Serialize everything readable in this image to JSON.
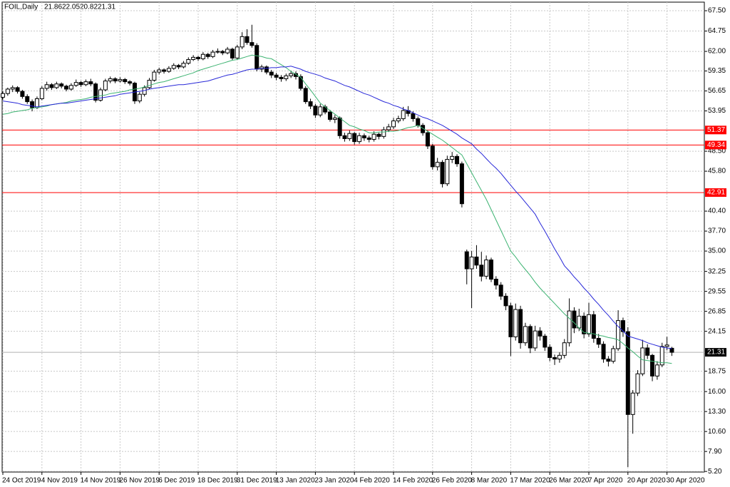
{
  "chart_data": {
    "type": "candlestick",
    "title": "FOIL,Daily",
    "categories": [
      "24 Oct 2019",
      null,
      null,
      null,
      null,
      null,
      null,
      null,
      "4 Nov 2019",
      null,
      null,
      null,
      null,
      null,
      null,
      null,
      "14 Nov 2019",
      null,
      null,
      null,
      null,
      null,
      null,
      null,
      "26 Nov 2019",
      null,
      null,
      null,
      null,
      null,
      null,
      null,
      "6 Dec 2019",
      null,
      null,
      null,
      null,
      null,
      null,
      null,
      "18 Dec 2019",
      null,
      null,
      null,
      null,
      null,
      null,
      null,
      "31 Dec 2019",
      null,
      null,
      null,
      null,
      null,
      null,
      null,
      "13 Jan 2020",
      null,
      null,
      null,
      null,
      null,
      null,
      null,
      "23 Jan 2020",
      null,
      null,
      null,
      null,
      null,
      null,
      null,
      "4 Feb 2020",
      null,
      null,
      null,
      null,
      null,
      null,
      null,
      "14 Feb 2020",
      null,
      null,
      null,
      null,
      null,
      null,
      null,
      "26 Feb 2020",
      null,
      null,
      null,
      null,
      null,
      null,
      null,
      "8 Mar 2020",
      null,
      null,
      null,
      null,
      null,
      null,
      null,
      "17 Mar 2020",
      null,
      null,
      null,
      null,
      null,
      null,
      null,
      "26 Mar 2020",
      null,
      null,
      null,
      null,
      null,
      null,
      null,
      "7 Apr 2020",
      null,
      null,
      null,
      null,
      null,
      null,
      null,
      "20 Apr 2020",
      null,
      null,
      null,
      null,
      null,
      null,
      null,
      "30 Apr 2020",
      null
    ],
    "candles": [
      [
        55.8,
        56.6,
        55.5,
        56.3
      ],
      [
        56.3,
        57.1,
        56.0,
        56.9
      ],
      [
        56.9,
        57.4,
        56.5,
        57.1
      ],
      [
        57.1,
        57.3,
        56.3,
        56.6
      ],
      [
        56.6,
        56.8,
        55.6,
        55.9
      ],
      [
        55.9,
        56.2,
        54.9,
        55.2
      ],
      [
        55.2,
        55.5,
        53.9,
        54.4
      ],
      [
        54.4,
        55.9,
        54.2,
        55.6
      ],
      [
        55.6,
        57.3,
        55.4,
        57.0
      ],
      [
        57.0,
        57.9,
        56.7,
        57.5
      ],
      [
        57.5,
        57.7,
        56.8,
        57.1
      ],
      [
        57.1,
        57.9,
        56.9,
        57.6
      ],
      [
        57.6,
        57.8,
        57.0,
        57.3
      ],
      [
        57.3,
        57.5,
        56.6,
        56.9
      ],
      [
        56.9,
        57.7,
        56.7,
        57.4
      ],
      [
        57.4,
        58.2,
        57.2,
        57.8
      ],
      [
        57.8,
        58.0,
        57.2,
        57.5
      ],
      [
        57.5,
        58.2,
        57.3,
        57.9
      ],
      [
        57.9,
        58.3,
        57.3,
        57.6
      ],
      [
        57.6,
        57.8,
        55.1,
        55.4
      ],
      [
        55.4,
        57.1,
        55.2,
        56.8
      ],
      [
        56.8,
        58.3,
        56.6,
        58.0
      ],
      [
        58.0,
        58.6,
        57.7,
        58.3
      ],
      [
        58.3,
        58.5,
        57.7,
        58.0
      ],
      [
        58.0,
        58.5,
        57.8,
        58.2
      ],
      [
        58.2,
        58.4,
        57.6,
        57.9
      ],
      [
        57.9,
        58.1,
        57.4,
        57.7
      ],
      [
        57.7,
        57.9,
        54.9,
        55.3
      ],
      [
        55.3,
        56.5,
        55.0,
        56.2
      ],
      [
        56.2,
        57.4,
        55.9,
        57.1
      ],
      [
        57.1,
        58.4,
        56.9,
        58.1
      ],
      [
        58.1,
        59.5,
        57.9,
        59.2
      ],
      [
        59.2,
        59.8,
        58.9,
        59.5
      ],
      [
        59.5,
        59.7,
        59.0,
        59.3
      ],
      [
        59.3,
        60.0,
        59.1,
        59.7
      ],
      [
        59.7,
        60.4,
        59.5,
        60.1
      ],
      [
        60.1,
        60.3,
        59.6,
        59.9
      ],
      [
        59.9,
        60.7,
        59.7,
        60.4
      ],
      [
        60.4,
        61.2,
        60.2,
        60.9
      ],
      [
        60.9,
        61.5,
        60.7,
        61.2
      ],
      [
        61.2,
        61.4,
        60.7,
        61.0
      ],
      [
        61.0,
        61.9,
        60.8,
        61.6
      ],
      [
        61.6,
        61.8,
        61.0,
        61.3
      ],
      [
        61.3,
        62.2,
        61.1,
        61.9
      ],
      [
        61.9,
        62.4,
        61.7,
        62.0
      ],
      [
        62.0,
        62.2,
        61.5,
        61.8
      ],
      [
        61.8,
        62.6,
        61.6,
        62.3
      ],
      [
        62.3,
        62.5,
        60.8,
        61.1
      ],
      [
        61.1,
        62.9,
        60.9,
        62.6
      ],
      [
        62.6,
        64.6,
        62.3,
        64.0
      ],
      [
        64.0,
        65.0,
        62.9,
        63.2
      ],
      [
        63.2,
        65.6,
        62.5,
        62.8
      ],
      [
        62.8,
        63.1,
        59.3,
        59.6
      ],
      [
        59.6,
        60.2,
        59.2,
        59.9
      ],
      [
        59.9,
        60.1,
        58.9,
        59.2
      ],
      [
        59.2,
        59.5,
        58.4,
        58.8
      ],
      [
        58.8,
        59.1,
        58.1,
        58.5
      ],
      [
        58.5,
        58.8,
        57.9,
        58.3
      ],
      [
        58.3,
        59.0,
        58.0,
        58.7
      ],
      [
        58.7,
        59.4,
        58.4,
        59.0
      ],
      [
        59.0,
        59.3,
        58.2,
        58.6
      ],
      [
        58.6,
        58.9,
        56.7,
        57.0
      ],
      [
        57.0,
        57.3,
        54.9,
        55.2
      ],
      [
        55.2,
        55.6,
        54.2,
        54.6
      ],
      [
        54.6,
        54.9,
        53.0,
        53.4
      ],
      [
        53.4,
        54.9,
        53.1,
        54.5
      ],
      [
        54.5,
        54.8,
        53.5,
        53.8
      ],
      [
        53.8,
        54.1,
        52.5,
        52.8
      ],
      [
        52.8,
        53.4,
        52.3,
        53.0
      ],
      [
        53.0,
        53.2,
        50.2,
        50.6
      ],
      [
        50.6,
        51.0,
        49.8,
        50.2
      ],
      [
        50.2,
        51.3,
        49.9,
        50.9
      ],
      [
        50.9,
        51.1,
        49.4,
        49.8
      ],
      [
        49.8,
        51.0,
        49.5,
        50.6
      ],
      [
        50.6,
        50.9,
        49.9,
        50.3
      ],
      [
        50.3,
        50.6,
        49.7,
        50.1
      ],
      [
        50.1,
        51.2,
        49.8,
        50.8
      ],
      [
        50.8,
        51.0,
        50.1,
        50.5
      ],
      [
        50.5,
        51.8,
        50.2,
        51.4
      ],
      [
        51.4,
        52.2,
        51.1,
        51.8
      ],
      [
        51.8,
        53.0,
        51.5,
        52.6
      ],
      [
        52.6,
        53.3,
        52.3,
        52.9
      ],
      [
        52.9,
        54.5,
        52.6,
        54.0
      ],
      [
        54.0,
        54.6,
        53.2,
        53.6
      ],
      [
        53.6,
        53.9,
        52.5,
        52.9
      ],
      [
        52.9,
        53.2,
        51.7,
        52.0
      ],
      [
        52.0,
        52.3,
        50.6,
        51.0
      ],
      [
        51.0,
        51.3,
        48.8,
        49.2
      ],
      [
        49.2,
        49.5,
        46.0,
        46.4
      ],
      [
        46.4,
        47.6,
        45.9,
        47.0
      ],
      [
        47.0,
        47.3,
        43.6,
        44.1
      ],
      [
        44.1,
        47.9,
        43.8,
        47.4
      ],
      [
        47.4,
        48.4,
        46.9,
        47.8
      ],
      [
        47.8,
        48.1,
        46.4,
        46.8
      ],
      [
        46.8,
        47.1,
        40.9,
        41.4
      ],
      [
        34.9,
        35.2,
        30.5,
        32.6
      ],
      [
        32.6,
        35.0,
        27.3,
        34.2
      ],
      [
        34.2,
        35.8,
        32.6,
        33.1
      ],
      [
        33.1,
        34.9,
        30.9,
        31.6
      ],
      [
        31.6,
        34.4,
        31.2,
        33.8
      ],
      [
        33.8,
        34.1,
        30.8,
        31.2
      ],
      [
        31.2,
        31.6,
        29.8,
        30.4
      ],
      [
        30.4,
        30.8,
        28.4,
        28.9
      ],
      [
        28.9,
        29.3,
        27.0,
        27.6
      ],
      [
        27.6,
        28.0,
        20.8,
        23.4
      ],
      [
        23.4,
        27.9,
        22.9,
        27.1
      ],
      [
        27.1,
        27.6,
        21.8,
        22.6
      ],
      [
        22.6,
        25.3,
        22.2,
        24.8
      ],
      [
        24.8,
        25.1,
        21.2,
        21.9
      ],
      [
        21.9,
        24.9,
        21.5,
        24.2
      ],
      [
        24.2,
        24.7,
        22.9,
        23.5
      ],
      [
        23.5,
        23.8,
        21.5,
        22.0
      ],
      [
        22.0,
        22.4,
        20.1,
        20.6
      ],
      [
        20.6,
        21.0,
        19.6,
        20.4
      ],
      [
        20.4,
        21.3,
        19.9,
        20.9
      ],
      [
        20.9,
        23.1,
        20.5,
        22.6
      ],
      [
        22.6,
        28.6,
        22.1,
        26.9
      ],
      [
        26.9,
        27.4,
        23.9,
        24.6
      ],
      [
        24.6,
        27.2,
        24.2,
        26.2
      ],
      [
        26.2,
        26.7,
        23.2,
        23.8
      ],
      [
        23.8,
        28.0,
        23.4,
        26.4
      ],
      [
        26.4,
        26.9,
        22.6,
        23.2
      ],
      [
        23.2,
        23.8,
        21.9,
        22.4
      ],
      [
        22.4,
        22.8,
        19.9,
        20.4
      ],
      [
        20.4,
        20.8,
        19.4,
        20.1
      ],
      [
        20.1,
        22.2,
        19.8,
        21.8
      ],
      [
        21.8,
        27.0,
        21.5,
        25.6
      ],
      [
        25.6,
        26.0,
        23.4,
        24.1
      ],
      [
        24.1,
        24.7,
        5.8,
        12.9
      ],
      [
        12.9,
        16.2,
        10.3,
        15.8
      ],
      [
        15.8,
        18.9,
        15.4,
        18.4
      ],
      [
        18.4,
        23.0,
        18.1,
        21.9
      ],
      [
        21.9,
        22.4,
        20.4,
        20.9
      ],
      [
        20.9,
        21.1,
        17.4,
        18.1
      ],
      [
        18.1,
        20.1,
        17.6,
        19.6
      ],
      [
        19.6,
        22.6,
        19.3,
        22.1
      ],
      [
        22.1,
        23.4,
        21.6,
        22.3
      ],
      [
        21.86,
        22.05,
        20.82,
        21.31
      ]
    ],
    "lines": [
      {
        "color": "#3cb371",
        "values": [
          53.5,
          53.6,
          53.8,
          53.9,
          54.0,
          54.1,
          54.3,
          54.4,
          54.5,
          54.6,
          54.8,
          54.9,
          55.0,
          55.1,
          55.3,
          55.4,
          55.5,
          55.6,
          55.8,
          55.9,
          56.0,
          56.1,
          56.3,
          56.4,
          56.5,
          56.6,
          56.8,
          56.9,
          57.0,
          57.2,
          57.4,
          57.6,
          57.8,
          57.9,
          58.1,
          58.3,
          58.5,
          58.7,
          58.9,
          59.1,
          59.4,
          59.6,
          59.8,
          60.0,
          60.2,
          60.4,
          60.6,
          60.8,
          60.9,
          61.1,
          61.3,
          61.5,
          61.4,
          61.3,
          61.1,
          61.0,
          60.6,
          60.2,
          59.8,
          59.3,
          58.9,
          58.5,
          57.6,
          56.8,
          55.9,
          55.0,
          54.5,
          54.0,
          53.5,
          53.0,
          52.5,
          52.0,
          51.8,
          51.5,
          51.3,
          51.0,
          51.0,
          51.1,
          51.1,
          51.2,
          51.2,
          51.3,
          51.5,
          51.7,
          51.8,
          52.0,
          51.6,
          51.2,
          50.8,
          50.4,
          50.0,
          49.5,
          49.0,
          48.5,
          48.0,
          46.8,
          45.6,
          44.4,
          43.2,
          42.0,
          40.6,
          39.2,
          37.8,
          36.4,
          35.0,
          34.2,
          33.3,
          32.5,
          31.7,
          30.8,
          30.0,
          29.3,
          28.6,
          27.9,
          27.2,
          26.5,
          25.9,
          25.3,
          24.6,
          24.0,
          23.9,
          23.8,
          23.6,
          23.5,
          23.3,
          23.2,
          23.0,
          22.5,
          21.9,
          21.4,
          20.8,
          20.3,
          20.2,
          20.1,
          20.0,
          19.9,
          19.9,
          19.8
        ]
      },
      {
        "color": "#2828d8",
        "values": [
          55.3,
          55.2,
          55.1,
          55.0,
          54.8,
          54.7,
          54.6,
          54.5,
          54.6,
          54.7,
          54.8,
          54.9,
          55.0,
          55.0,
          55.1,
          55.2,
          55.3,
          55.4,
          55.5,
          55.6,
          55.7,
          55.8,
          55.9,
          56.0,
          56.2,
          56.3,
          56.4,
          56.5,
          56.6,
          56.7,
          56.9,
          57.0,
          57.1,
          57.2,
          57.3,
          57.4,
          57.5,
          57.5,
          57.6,
          57.7,
          57.8,
          57.9,
          58.0,
          58.2,
          58.4,
          58.6,
          58.8,
          58.9,
          59.1,
          59.3,
          59.5,
          59.6,
          59.6,
          59.7,
          59.7,
          59.8,
          59.8,
          59.9,
          59.9,
          60.0,
          59.8,
          59.6,
          59.3,
          59.1,
          58.9,
          58.7,
          58.4,
          58.2,
          58.0,
          57.7,
          57.4,
          57.2,
          56.9,
          56.6,
          56.3,
          56.1,
          55.8,
          55.5,
          55.2,
          55.0,
          54.7,
          54.5,
          54.2,
          54.0,
          53.7,
          53.4,
          53.1,
          52.9,
          52.6,
          52.3,
          52.0,
          51.6,
          51.2,
          50.8,
          50.3,
          49.9,
          49.5,
          48.8,
          48.2,
          47.5,
          46.8,
          46.2,
          45.5,
          44.7,
          43.9,
          43.1,
          42.4,
          41.6,
          40.8,
          40.0,
          38.8,
          37.7,
          36.5,
          35.3,
          34.2,
          33.0,
          32.3,
          31.5,
          30.8,
          30.0,
          29.3,
          28.5,
          27.8,
          27.0,
          26.3,
          25.5,
          24.8,
          24.2,
          23.5,
          23.3,
          23.1,
          22.9,
          22.6,
          22.4,
          22.2,
          22.0,
          21.9,
          21.8
        ]
      }
    ],
    "levels": [
      51.37,
      49.34,
      42.91
    ],
    "level_color": "#ff0000",
    "up_color": "#ffffff",
    "down_color": "#000000",
    "ylim": [
      5.12,
      68.66
    ],
    "yticks": [
      {
        "value": 67.5,
        "label": "67.50"
      },
      64.75,
      {
        "value": 62,
        "label": "62.00"
      },
      59.35,
      56.65,
      53.95,
      {
        "value": 48.5,
        "label": "48.50"
      },
      {
        "value": 45.8,
        "label": "45.80"
      },
      {
        "value": 40.4,
        "label": "40.40"
      },
      {
        "value": 37.7,
        "label": "37.70"
      },
      {
        "value": 35,
        "label": "35.00"
      },
      32.25,
      29.55,
      26.85,
      24.15,
      18.75,
      {
        "value": 16,
        "label": "16.00"
      },
      {
        "value": 13.3,
        "label": "13.30"
      },
      {
        "value": 10.6,
        "label": "10.60"
      },
      {
        "value": 7.9,
        "label": "7.90"
      },
      {
        "value": 5.2,
        "label": "5.20"
      }
    ],
    "grid": true
  }
}
